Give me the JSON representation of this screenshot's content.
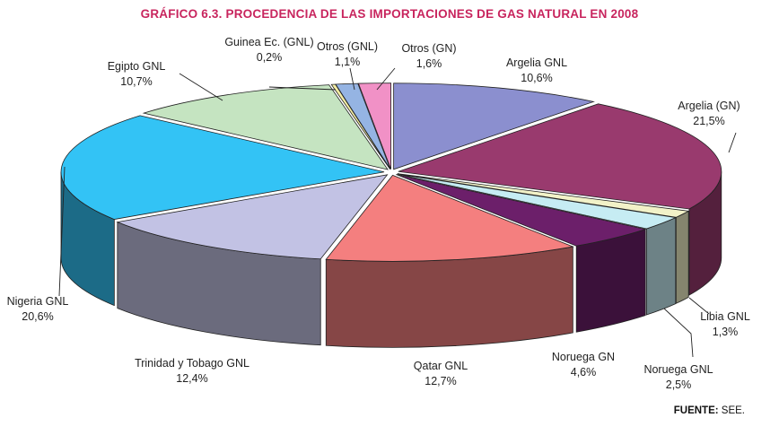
{
  "title": "GRÁFICO 6.3. PROCEDENCIA DE LAS IMPORTACIONES DE GAS NATURAL EN 2008",
  "source": {
    "label": "FUENTE:",
    "value": "SEE."
  },
  "colors": {
    "title": "#c8255e"
  },
  "chart_data": {
    "type": "pie",
    "style": "3d-exploded",
    "title": "GRÁFICO 6.3. PROCEDENCIA DE LAS IMPORTACIONES DE GAS NATURAL EN 2008",
    "slices": [
      {
        "name": "Argelia GNL",
        "value": 10.6,
        "label": "10,6%",
        "color": "#8b8fcf"
      },
      {
        "name": "Argelia (GN)",
        "value": 21.5,
        "label": "21,5%",
        "color": "#993a6e"
      },
      {
        "name": "Libia GNL",
        "value": 1.3,
        "label": "1,3%",
        "color": "#f2f2c8"
      },
      {
        "name": "Noruega GNL",
        "value": 2.5,
        "label": "2,5%",
        "color": "#c6ecf3"
      },
      {
        "name": "Noruega GN",
        "value": 4.6,
        "label": "4,6%",
        "color": "#6c1f6a"
      },
      {
        "name": "Qatar GNL",
        "value": 12.7,
        "label": "12,7%",
        "color": "#f47f7f"
      },
      {
        "name": "Trinidad y Tobago GNL",
        "value": 12.4,
        "label": "12,4%",
        "color": "#c2c2e4"
      },
      {
        "name": "Nigeria GNL",
        "value": 20.6,
        "label": "20,6%",
        "color": "#33c3f5"
      },
      {
        "name": "Egipto GNL",
        "value": 10.7,
        "label": "10,7%",
        "color": "#c5e4c1"
      },
      {
        "name": "Guinea Ec. (GNL)",
        "value": 0.2,
        "label": "0,2%",
        "color": "#f3eda4"
      },
      {
        "name": "Otros (GNL)",
        "value": 1.1,
        "label": "1,1%",
        "color": "#95b4e3"
      },
      {
        "name": "Otros (GN)",
        "value": 1.6,
        "label": "1,6%",
        "color": "#f191c6"
      }
    ]
  }
}
